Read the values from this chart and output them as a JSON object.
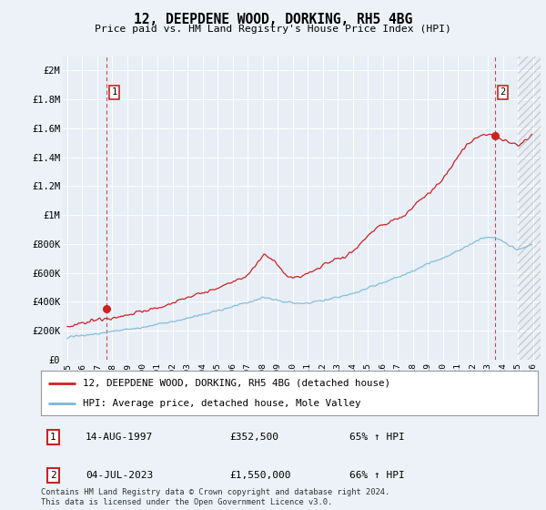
{
  "title": "12, DEEPDENE WOOD, DORKING, RH5 4BG",
  "subtitle": "Price paid vs. HM Land Registry's House Price Index (HPI)",
  "ylabel_ticks": [
    "£0",
    "£200K",
    "£400K",
    "£600K",
    "£800K",
    "£1M",
    "£1.2M",
    "£1.4M",
    "£1.6M",
    "£1.8M",
    "£2M"
  ],
  "ytick_values": [
    0,
    200000,
    400000,
    600000,
    800000,
    1000000,
    1200000,
    1400000,
    1600000,
    1800000,
    2000000
  ],
  "ylim": [
    0,
    2100000
  ],
  "xlim_start": 1994.7,
  "xlim_end": 2026.5,
  "xtick_labels": [
    "1995",
    "1996",
    "1997",
    "1998",
    "1999",
    "2000",
    "2001",
    "2002",
    "2003",
    "2004",
    "2005",
    "2006",
    "2007",
    "2008",
    "2009",
    "2010",
    "2011",
    "2012",
    "2013",
    "2014",
    "2015",
    "2016",
    "2017",
    "2018",
    "2019",
    "2020",
    "2021",
    "2022",
    "2023",
    "2024",
    "2025",
    "2026"
  ],
  "xtick_values": [
    1995,
    1996,
    1997,
    1998,
    1999,
    2000,
    2001,
    2002,
    2003,
    2004,
    2005,
    2006,
    2007,
    2008,
    2009,
    2010,
    2011,
    2012,
    2013,
    2014,
    2015,
    2016,
    2017,
    2018,
    2019,
    2020,
    2021,
    2022,
    2023,
    2024,
    2025,
    2026
  ],
  "sale1_x": 1997.62,
  "sale1_y": 352500,
  "sale1_label": "1",
  "sale2_x": 2023.5,
  "sale2_y": 1550000,
  "sale2_label": "2",
  "hpi_color": "#7ab8d9",
  "price_color": "#cc2222",
  "dashed_color": "#cc2222",
  "bg_color": "#edf2f8",
  "plot_bg": "#e8eef6",
  "legend_line1": "12, DEEPDENE WOOD, DORKING, RH5 4BG (detached house)",
  "legend_line2": "HPI: Average price, detached house, Mole Valley",
  "table_row1_num": "1",
  "table_row1_date": "14-AUG-1997",
  "table_row1_price": "£352,500",
  "table_row1_hpi": "65% ↑ HPI",
  "table_row2_num": "2",
  "table_row2_date": "04-JUL-2023",
  "table_row2_price": "£1,550,000",
  "table_row2_hpi": "66% ↑ HPI",
  "footer": "Contains HM Land Registry data © Crown copyright and database right 2024.\nThis data is licensed under the Open Government Licence v3.0."
}
